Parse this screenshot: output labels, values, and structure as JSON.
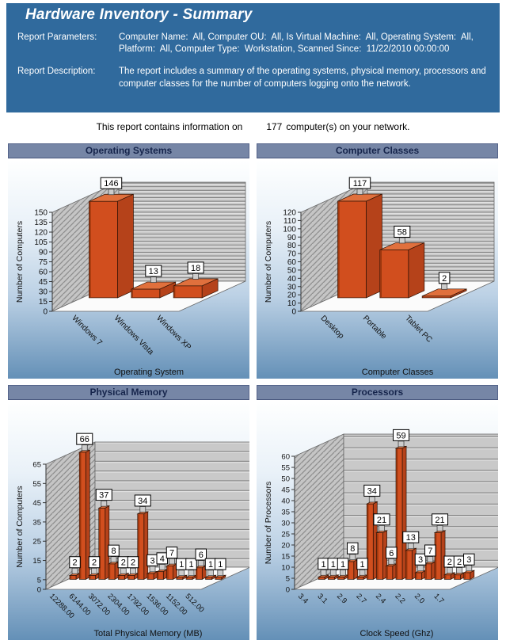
{
  "header": {
    "title": "Hardware Inventory - Summary",
    "params_label": "Report Parameters:",
    "params_value": "Computer Name:  All, Computer OU:  All, Is Virtual Machine:  All, Operating System:  All, Platform:  All, Computer Type:  Workstation, Scanned Since:  11/22/2010 00:00:00",
    "desc_label": "Report Description:",
    "desc_value": "The report includes a summary of the operating systems, physical memory, processors and computer classes for the number of computers logging onto the network."
  },
  "summary_line": {
    "prefix": "This report contains information on",
    "count": "177",
    "suffix": "computer(s) on your network."
  },
  "colors": {
    "header_blue": "#306a9d",
    "panel_title_bg": "#7686a6",
    "panel_title_text": "#16254c",
    "bar_front": "#d14e1e",
    "bar_top": "#e0703d",
    "bar_side": "#b5421a",
    "bar_accent": "#8e3008",
    "bar_stroke": "#2e1205",
    "wall_gray": "#c9c9c9",
    "floor": "#fbfbfb",
    "gradient_bottom": "#6490b7"
  },
  "chart_data": [
    {
      "type": "bar",
      "projection": "3d",
      "title": "Operating Systems",
      "categories": [
        "Windows 7",
        "Windows Vista",
        "Windows XP"
      ],
      "values": [
        146,
        13,
        18
      ],
      "tick_label_every": 1,
      "xlabel": "Operating System",
      "ylabel": "Number of Computers",
      "yticks": [
        0,
        15,
        30,
        45,
        60,
        75,
        90,
        105,
        120,
        135,
        150
      ],
      "ylim": [
        0,
        150
      ],
      "grid": "horizontal-slats",
      "legend": "none"
    },
    {
      "type": "bar",
      "projection": "3d",
      "title": "Computer Classes",
      "categories": [
        "Desktop",
        "Portable",
        "Tablet PC"
      ],
      "values": [
        117,
        58,
        2
      ],
      "tick_label_every": 1,
      "xlabel": "Computer Classes",
      "ylabel": "Number of Computers",
      "yticks": [
        0,
        10,
        20,
        30,
        40,
        50,
        60,
        70,
        80,
        90,
        100,
        110,
        120
      ],
      "ylim": [
        0,
        120
      ],
      "grid": "horizontal-slats",
      "legend": "none"
    },
    {
      "type": "bar",
      "projection": "3d",
      "title": "Physical Memory",
      "categories": [
        "12288.00",
        "6144.00",
        "3072.00",
        "2304.00",
        "1792.00",
        "1536.00",
        "1152.00",
        "512.00"
      ],
      "values": [
        2,
        66,
        2,
        37,
        8,
        2,
        2,
        34,
        3,
        4,
        7,
        1,
        1,
        6,
        1,
        1
      ],
      "tick_label_every": 2,
      "xlabel": "Total Physical Memory (MB)",
      "ylabel": "Number of Computers",
      "yticks": [
        0,
        5,
        15,
        25,
        35,
        45,
        55,
        65
      ],
      "ylim": [
        0,
        65
      ],
      "grid": "horizontal-slats",
      "legend": "none"
    },
    {
      "type": "bar",
      "projection": "3d",
      "title": "Processors",
      "categories": [
        "3.4",
        "3.1",
        "2.9",
        "2.7",
        "2.4",
        "2.2",
        "2.0",
        "1.7"
      ],
      "values": [
        1,
        1,
        1,
        8,
        1,
        34,
        21,
        6,
        59,
        13,
        3,
        7,
        21,
        2,
        2,
        3
      ],
      "tick_label_every": 2,
      "xlabel": "Clock Speed (Ghz)",
      "ylabel": "Number of Processors",
      "yticks": [
        0,
        5,
        10,
        15,
        20,
        25,
        30,
        35,
        40,
        45,
        50,
        55,
        60
      ],
      "ylim": [
        0,
        60
      ],
      "grid": "horizontal-slats",
      "legend": "none"
    }
  ]
}
